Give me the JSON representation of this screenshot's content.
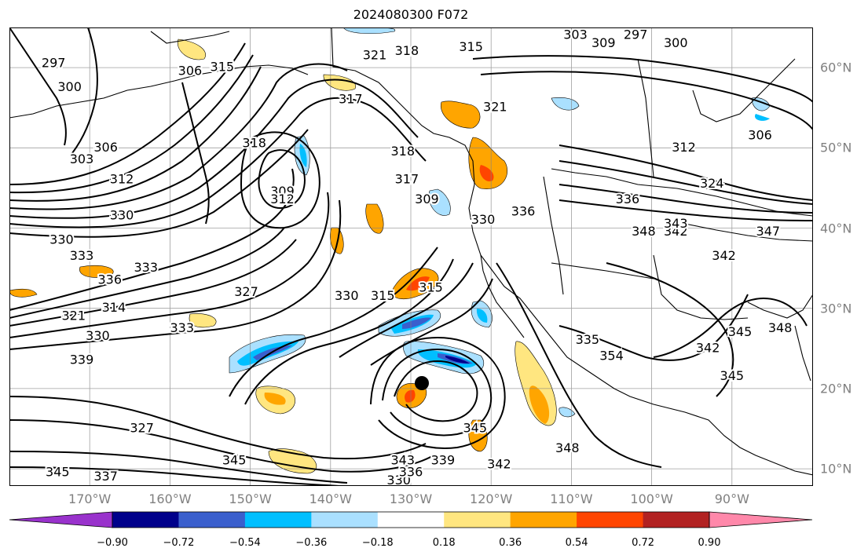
{
  "title": "2024080300 F072",
  "lon_labels": [
    {
      "text": "170°W",
      "lon": -170
    },
    {
      "text": "160°W",
      "lon": -160
    },
    {
      "text": "150°W",
      "lon": -150
    },
    {
      "text": "140°W",
      "lon": -140
    },
    {
      "text": "130°W",
      "lon": -130
    },
    {
      "text": "120°W",
      "lon": -120
    },
    {
      "text": "110°W",
      "lon": -110
    },
    {
      "text": "100°W",
      "lon": -100
    },
    {
      "text": "90°W",
      "lon": -90
    }
  ],
  "lat_labels": [
    {
      "text": "60°N",
      "lat": 60
    },
    {
      "text": "50°N",
      "lat": 50
    },
    {
      "text": "40°N",
      "lat": 40
    },
    {
      "text": "30°N",
      "lat": 30
    },
    {
      "text": "20°N",
      "lat": 20
    },
    {
      "text": "10°N",
      "lat": 10
    }
  ],
  "colorbar": {
    "colors": [
      "#9932cc",
      "#00008b",
      "#3a5fcd",
      "#00bfff",
      "#aae0ff",
      "#ffffff",
      "#ffe680",
      "#ffa500",
      "#ff4500",
      "#b22222",
      "#ff88aa"
    ],
    "ticks": [
      "−0.90",
      "−0.72",
      "−0.54",
      "−0.36",
      "−0.18",
      "0.18",
      "0.36",
      "0.54",
      "0.72",
      "0.90"
    ]
  },
  "contour_labels": [
    {
      "t": "297",
      "lon": -174.5,
      "lat": 60.5
    },
    {
      "t": "300",
      "lon": -172.5,
      "lat": 57.5
    },
    {
      "t": "303",
      "lon": -171,
      "lat": 48.5
    },
    {
      "t": "306",
      "lon": -168,
      "lat": 50
    },
    {
      "t": "312",
      "lon": -166,
      "lat": 46
    },
    {
      "t": "330",
      "lon": -166,
      "lat": 41.5
    },
    {
      "t": "306",
      "lon": -157.5,
      "lat": 59.5
    },
    {
      "t": "315",
      "lon": -153.5,
      "lat": 60
    },
    {
      "t": "318",
      "lon": -149.5,
      "lat": 50.5
    },
    {
      "t": "309",
      "lon": -146,
      "lat": 44.5
    },
    {
      "t": "312",
      "lon": -146,
      "lat": 43.5
    },
    {
      "t": "317",
      "lon": -137.5,
      "lat": 56
    },
    {
      "t": "321",
      "lon": -134.5,
      "lat": 61.5
    },
    {
      "t": "318",
      "lon": -130.5,
      "lat": 62
    },
    {
      "t": "318",
      "lon": -131,
      "lat": 49.5
    },
    {
      "t": "317",
      "lon": -130.5,
      "lat": 46
    },
    {
      "t": "309",
      "lon": -128,
      "lat": 43.5
    },
    {
      "t": "315",
      "lon": -122.5,
      "lat": 62.5
    },
    {
      "t": "321",
      "lon": -119.5,
      "lat": 55
    },
    {
      "t": "303",
      "lon": -109.5,
      "lat": 64
    },
    {
      "t": "297",
      "lon": -102,
      "lat": 64
    },
    {
      "t": "309",
      "lon": -106,
      "lat": 63
    },
    {
      "t": "300",
      "lon": -97,
      "lat": 63
    },
    {
      "t": "312",
      "lon": -96,
      "lat": 50
    },
    {
      "t": "306",
      "lon": -86.5,
      "lat": 51.5
    },
    {
      "t": "324",
      "lon": -92.5,
      "lat": 45.5
    },
    {
      "t": "336",
      "lon": -103,
      "lat": 43.5
    },
    {
      "t": "348",
      "lon": -101,
      "lat": 39.5
    },
    {
      "t": "342",
      "lon": -97,
      "lat": 39.5
    },
    {
      "t": "343",
      "lon": -97,
      "lat": 40.5
    },
    {
      "t": "342",
      "lon": -91,
      "lat": 36.5
    },
    {
      "t": "347",
      "lon": -85.5,
      "lat": 39.5
    },
    {
      "t": "330",
      "lon": -121,
      "lat": 41
    },
    {
      "t": "336",
      "lon": -116,
      "lat": 42
    },
    {
      "t": "330",
      "lon": -173.5,
      "lat": 38.5
    },
    {
      "t": "333",
      "lon": -171,
      "lat": 36.5
    },
    {
      "t": "336",
      "lon": -167.5,
      "lat": 33.5
    },
    {
      "t": "333",
      "lon": -163,
      "lat": 35
    },
    {
      "t": "314",
      "lon": -167,
      "lat": 30
    },
    {
      "t": "321",
      "lon": -172,
      "lat": 29
    },
    {
      "t": "330",
      "lon": -169,
      "lat": 26.5
    },
    {
      "t": "339",
      "lon": -171,
      "lat": 23.5
    },
    {
      "t": "333",
      "lon": -158.5,
      "lat": 27.5
    },
    {
      "t": "327",
      "lon": -150.5,
      "lat": 32
    },
    {
      "t": "330",
      "lon": -138,
      "lat": 31.5
    },
    {
      "t": "315",
      "lon": -133.5,
      "lat": 31.5
    },
    {
      "t": "315",
      "lon": -127.5,
      "lat": 32.5
    },
    {
      "t": "327",
      "lon": -163.5,
      "lat": 15
    },
    {
      "t": "345",
      "lon": -174,
      "lat": 9.5
    },
    {
      "t": "337",
      "lon": -168,
      "lat": 9
    },
    {
      "t": "345",
      "lon": -152,
      "lat": 11
    },
    {
      "t": "343",
      "lon": -131,
      "lat": 11
    },
    {
      "t": "330",
      "lon": -131.5,
      "lat": 8.5
    },
    {
      "t": "336",
      "lon": -130,
      "lat": 9.5
    },
    {
      "t": "339",
      "lon": -126,
      "lat": 11
    },
    {
      "t": "345",
      "lon": -122,
      "lat": 15
    },
    {
      "t": "342",
      "lon": -119,
      "lat": 10.5
    },
    {
      "t": "348",
      "lon": -110.5,
      "lat": 12.5
    },
    {
      "t": "335",
      "lon": -108,
      "lat": 26
    },
    {
      "t": "354",
      "lon": -105,
      "lat": 24
    },
    {
      "t": "342",
      "lon": -93,
      "lat": 25
    },
    {
      "t": "345",
      "lon": -89,
      "lat": 27
    },
    {
      "t": "348",
      "lon": -84,
      "lat": 27.5
    },
    {
      "t": "345",
      "lon": -90,
      "lat": 21.5
    }
  ]
}
